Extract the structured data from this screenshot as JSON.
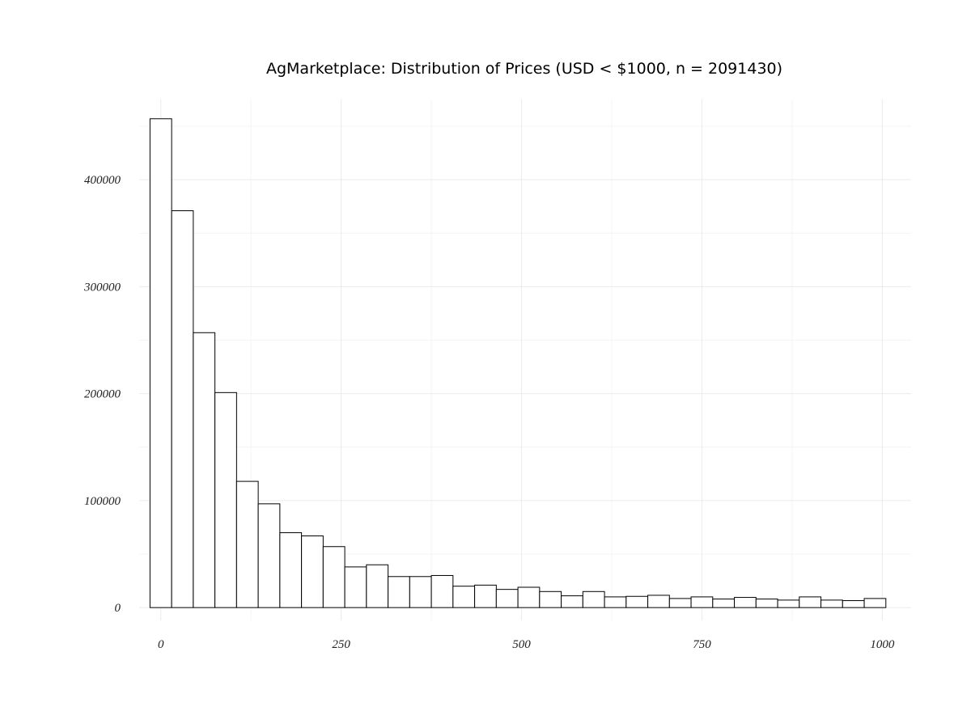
{
  "chart_data": {
    "type": "bar",
    "title": "AgMarketplace: Distribution of Prices (USD < $1000, n = 2091430)",
    "xlabel": "",
    "ylabel": "",
    "bin_width": 30,
    "first_bin_center": 0,
    "xlim": [
      -30,
      1040
    ],
    "ylim": [
      -12000,
      475000
    ],
    "x_ticks": [
      0,
      250,
      500,
      750,
      1000
    ],
    "x_tick_labels": [
      "0",
      "250",
      "500",
      "750",
      "1000"
    ],
    "y_ticks": [
      0,
      100000,
      200000,
      300000,
      400000
    ],
    "y_tick_labels": [
      "0",
      "100000",
      "200000",
      "300000",
      "400000"
    ],
    "bin_centers": [
      0,
      30,
      60,
      90,
      120,
      150,
      180,
      210,
      240,
      270,
      300,
      330,
      360,
      390,
      420,
      450,
      480,
      510,
      540,
      570,
      600,
      630,
      660,
      690,
      720,
      750,
      780,
      810,
      840,
      870,
      900,
      930,
      960,
      990
    ],
    "values": [
      457000,
      371000,
      257000,
      201000,
      118000,
      97000,
      70000,
      67000,
      57000,
      38000,
      40000,
      29000,
      29000,
      30000,
      20000,
      21000,
      17000,
      19000,
      15000,
      11000,
      15000,
      10000,
      10500,
      11500,
      8500,
      10000,
      8000,
      9500,
      8000,
      7000,
      10000,
      7000,
      6500,
      8500
    ],
    "grid": true,
    "legend": "none"
  }
}
